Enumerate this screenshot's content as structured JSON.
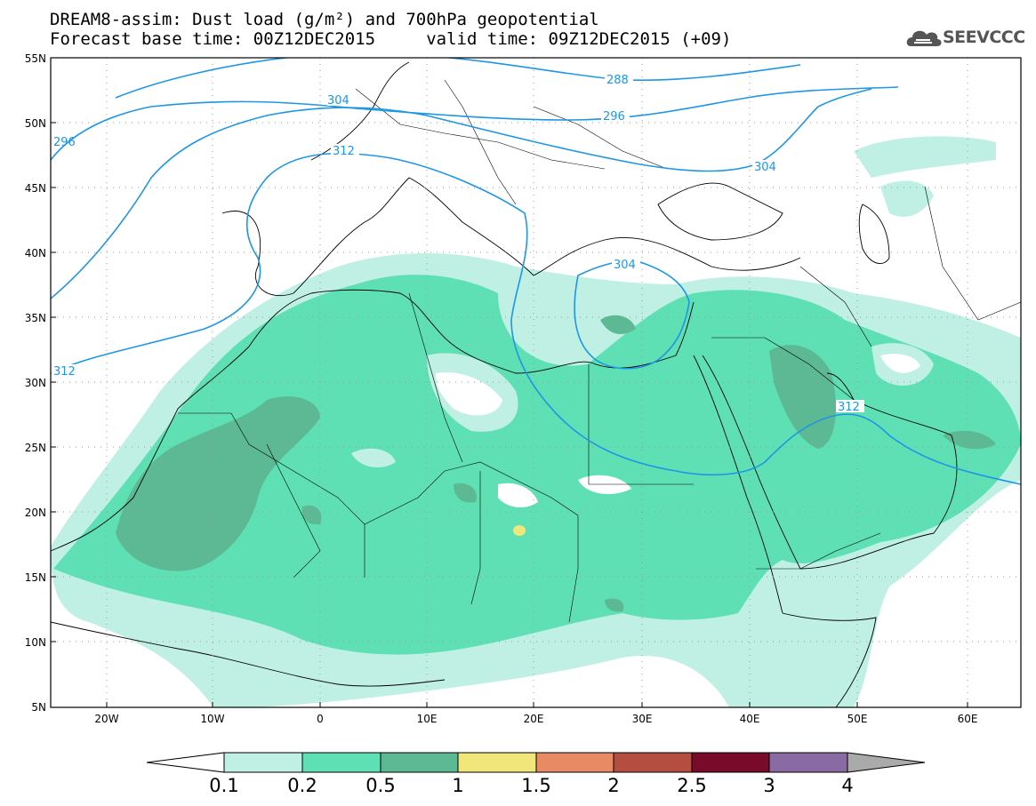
{
  "header": {
    "title_line1": "DREAM8-assim: Dust load (g/m²) and 700hPa geopotential",
    "title_line2": "Forecast base time: 00Z12DEC2015     valid time: 09Z12DEC2015 (+09)",
    "logo_text": "SEEVCCC"
  },
  "map": {
    "lon_range": [
      -25,
      65
    ],
    "lat_range": [
      5,
      55
    ],
    "lat_ticks": [
      "55N",
      "50N",
      "45N",
      "40N",
      "35N",
      "30N",
      "25N",
      "20N",
      "15N",
      "10N",
      "5N"
    ],
    "lon_ticks": [
      "20W",
      "10W",
      "0",
      "10E",
      "20E",
      "30E",
      "40E",
      "50E",
      "60E"
    ],
    "contour_labels": [
      "296",
      "288",
      "304",
      "296",
      "312",
      "304",
      "304",
      "312",
      "312"
    ],
    "contour_color": "#1e96e6"
  },
  "colorbar": {
    "labels": [
      "0.1",
      "0.2",
      "0.5",
      "1",
      "1.5",
      "2",
      "2.5",
      "3",
      "4"
    ],
    "colors": [
      "#bff0e3",
      "#5ee0b4",
      "#5db894",
      "#f0e67a",
      "#e88a64",
      "#b44e40",
      "#7a0a2a",
      "#8a6aa2",
      "#aaaaaa"
    ]
  }
}
